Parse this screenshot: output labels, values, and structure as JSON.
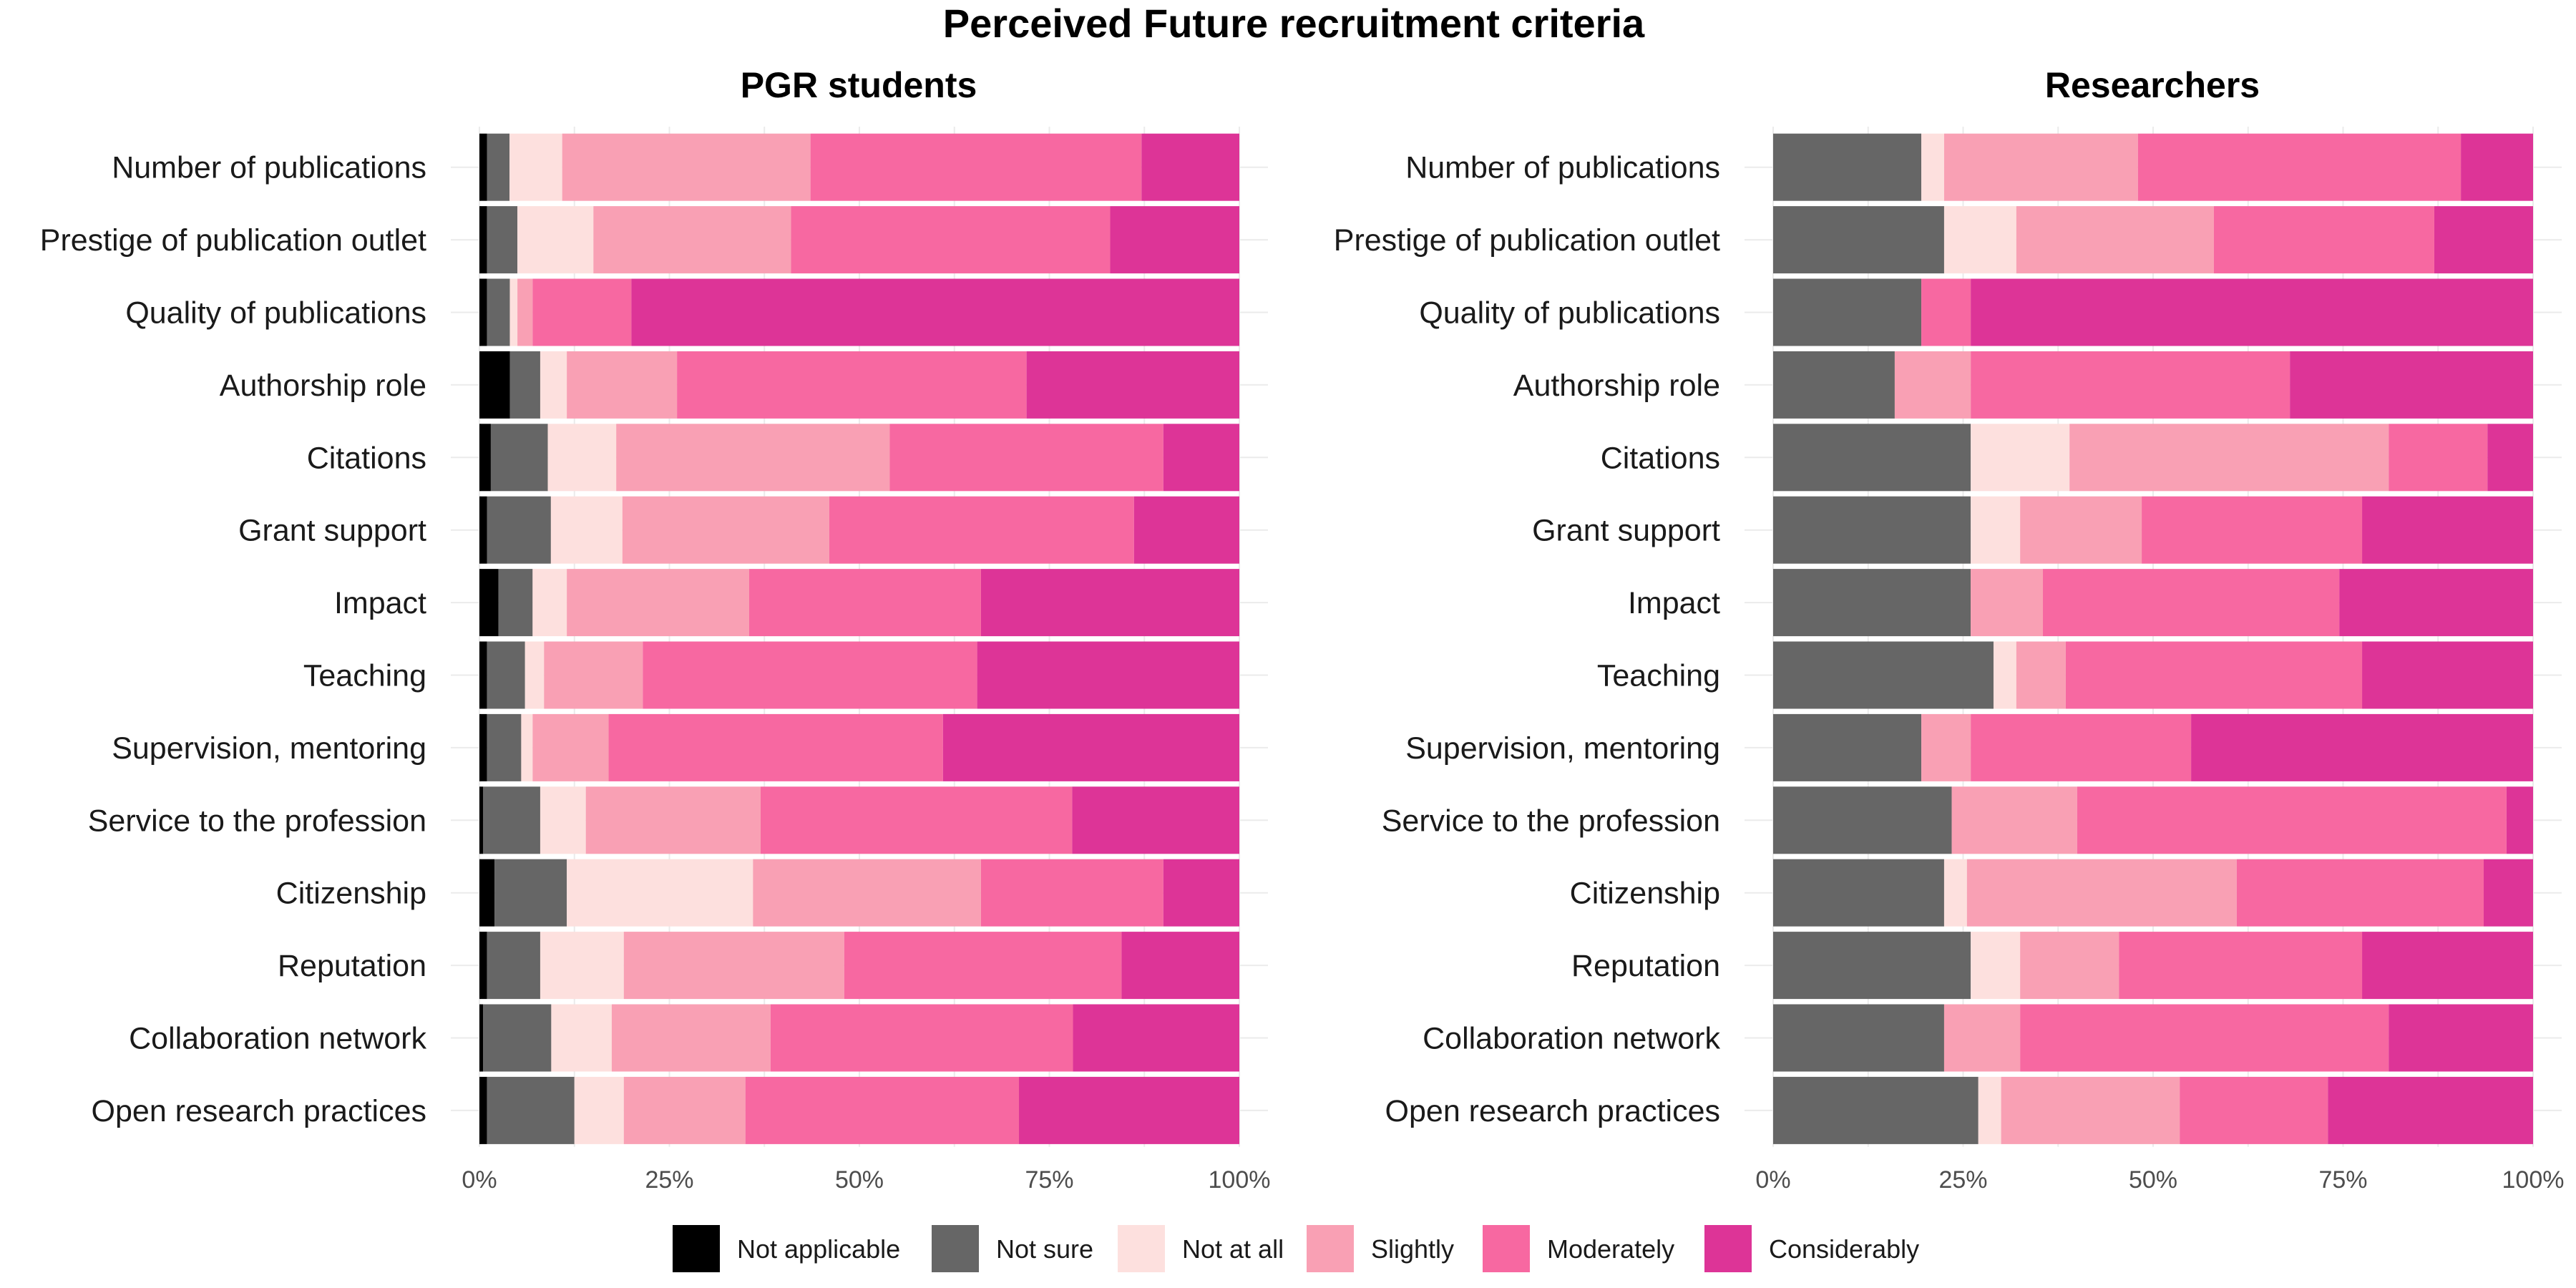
{
  "chart_data": {
    "type": "bar",
    "orientation": "horizontal",
    "stacked": "percent",
    "title": "Perceived Future recruitment criteria",
    "categories": [
      "Number of publications",
      "Prestige of publication outlet",
      "Quality of publications",
      "Authorship role",
      "Citations",
      "Grant support",
      "Impact",
      "Teaching",
      "Supervision, mentoring",
      "Service to the profession",
      "Citizenship",
      "Reputation",
      "Collaboration network",
      "Open research practices"
    ],
    "responses": [
      "Not applicable",
      "Not sure",
      "Not at all",
      "Slightly",
      "Moderately",
      "Considerably"
    ],
    "colors": {
      "Not applicable": "#000000",
      "Not sure": "#666666",
      "Not at all": "#fde0de",
      "Slightly": "#f9a0b4",
      "Moderately": "#f768a1",
      "Considerably": "#dd3497"
    },
    "xticks": [
      "0%",
      "25%",
      "50%",
      "75%",
      "100%"
    ],
    "xlim": [
      0,
      100
    ],
    "legend_position": "bottom",
    "grid": true,
    "panels": [
      {
        "title": "PGR students",
        "values": [
          [
            1,
            3,
            7,
            33,
            44,
            13
          ],
          [
            1,
            4,
            10,
            26,
            42,
            17
          ],
          [
            1,
            3,
            1,
            2,
            13,
            80
          ],
          [
            4,
            4,
            3.5,
            14.5,
            46,
            28
          ],
          [
            1.5,
            7.5,
            9,
            36,
            36,
            10
          ],
          [
            1,
            8.5,
            9.5,
            27.5,
            40.5,
            14
          ],
          [
            2.5,
            4.5,
            4.5,
            24,
            30.5,
            34
          ],
          [
            1,
            5,
            2.5,
            13,
            44,
            34.5
          ],
          [
            1,
            4.5,
            1.5,
            10,
            44,
            39
          ],
          [
            0.5,
            7.5,
            6,
            23,
            41,
            22
          ],
          [
            2,
            9.5,
            24.5,
            30,
            24,
            10
          ],
          [
            1,
            7,
            11,
            29,
            36.5,
            15.5
          ],
          [
            0.5,
            9,
            8,
            21,
            40,
            22
          ],
          [
            1,
            11.5,
            6.5,
            16,
            36,
            29
          ]
        ]
      },
      {
        "title": "Researchers",
        "values": [
          [
            0,
            19.5,
            3,
            25.5,
            42.5,
            9.5
          ],
          [
            0,
            22.5,
            9.5,
            26,
            29,
            13
          ],
          [
            0,
            19.5,
            0,
            0,
            6.5,
            74
          ],
          [
            0,
            16,
            0,
            10,
            42,
            32
          ],
          [
            0,
            26,
            13,
            42,
            13,
            6
          ],
          [
            0,
            26,
            6.5,
            16,
            29,
            22.5
          ],
          [
            0,
            26,
            0,
            9.5,
            39,
            25.5
          ],
          [
            0,
            29,
            3,
            6.5,
            39,
            22.5
          ],
          [
            0,
            19.5,
            0,
            6.5,
            29,
            45
          ],
          [
            0,
            23.5,
            0,
            16.5,
            56.5,
            3.5
          ],
          [
            0,
            22.5,
            3,
            35.5,
            32.5,
            6.5
          ],
          [
            0,
            26,
            6.5,
            13,
            32,
            22.5
          ],
          [
            0,
            22.5,
            0,
            10,
            48.5,
            19
          ],
          [
            0,
            27,
            3,
            23.5,
            19.5,
            27
          ]
        ]
      }
    ]
  }
}
